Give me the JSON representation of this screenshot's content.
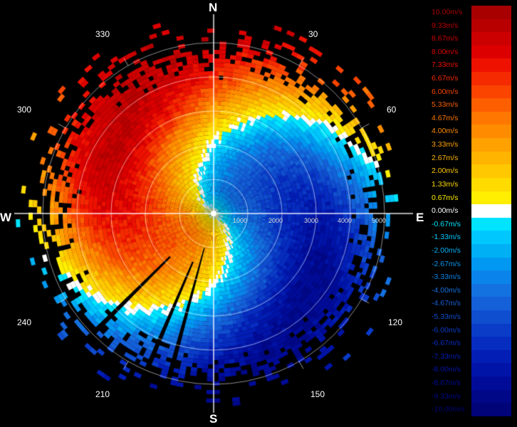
{
  "compass": {
    "north": "N",
    "south": "S",
    "east": "E",
    "west": "W"
  },
  "bearings": [
    "30",
    "60",
    "120",
    "150",
    "210",
    "240",
    "300",
    "330"
  ],
  "range_labels": [
    "1000",
    "2000",
    "3000",
    "4000",
    "5000"
  ],
  "legend": {
    "unit": "m/s",
    "entries": [
      {
        "label": "10.00m/s",
        "color": "#a80000"
      },
      {
        "label": "9.33m/s",
        "color": "#b80000"
      },
      {
        "label": "8.67m/s",
        "color": "#cc0000"
      },
      {
        "label": "8.00m/s",
        "color": "#dd0000"
      },
      {
        "label": "7.33m/s",
        "color": "#ee1100"
      },
      {
        "label": "6.67m/s",
        "color": "#f52a00"
      },
      {
        "label": "6.00m/s",
        "color": "#fa4400"
      },
      {
        "label": "5.33m/s",
        "color": "#fd5f00"
      },
      {
        "label": "4.67m/s",
        "color": "#ff7700"
      },
      {
        "label": "4.00m/s",
        "color": "#ff8c00"
      },
      {
        "label": "3.33m/s",
        "color": "#ffa100"
      },
      {
        "label": "2.67m/s",
        "color": "#ffb400"
      },
      {
        "label": "2.00m/s",
        "color": "#ffc800"
      },
      {
        "label": "1.33m/s",
        "color": "#ffdb00"
      },
      {
        "label": "0.67m/s",
        "color": "#ffee00"
      },
      {
        "label": "0.00m/s",
        "color": "#ffffff"
      },
      {
        "label": "-0.67m/s",
        "color": "#00e4ff"
      },
      {
        "label": "-1.33m/s",
        "color": "#00c8ff"
      },
      {
        "label": "-2.00m/s",
        "color": "#00b0f5"
      },
      {
        "label": "-2.67m/s",
        "color": "#0098f0"
      },
      {
        "label": "-3.33m/s",
        "color": "#0a84ea"
      },
      {
        "label": "-4.00m/s",
        "color": "#1472e0"
      },
      {
        "label": "-4.67m/s",
        "color": "#1460d8"
      },
      {
        "label": "-5.33m/s",
        "color": "#104ed0"
      },
      {
        "label": "-6.00m/s",
        "color": "#0a3cc8"
      },
      {
        "label": "-6.67m/s",
        "color": "#062cc0"
      },
      {
        "label": "-7.33m/s",
        "color": "#031eb4"
      },
      {
        "label": "-8.00m/s",
        "color": "#0014a8"
      },
      {
        "label": "-8.67m/s",
        "color": "#000c98"
      },
      {
        "label": "-9.33m/s",
        "color": "#000888"
      },
      {
        "label": "-10.00m/s",
        "color": "#000478"
      }
    ]
  }
}
